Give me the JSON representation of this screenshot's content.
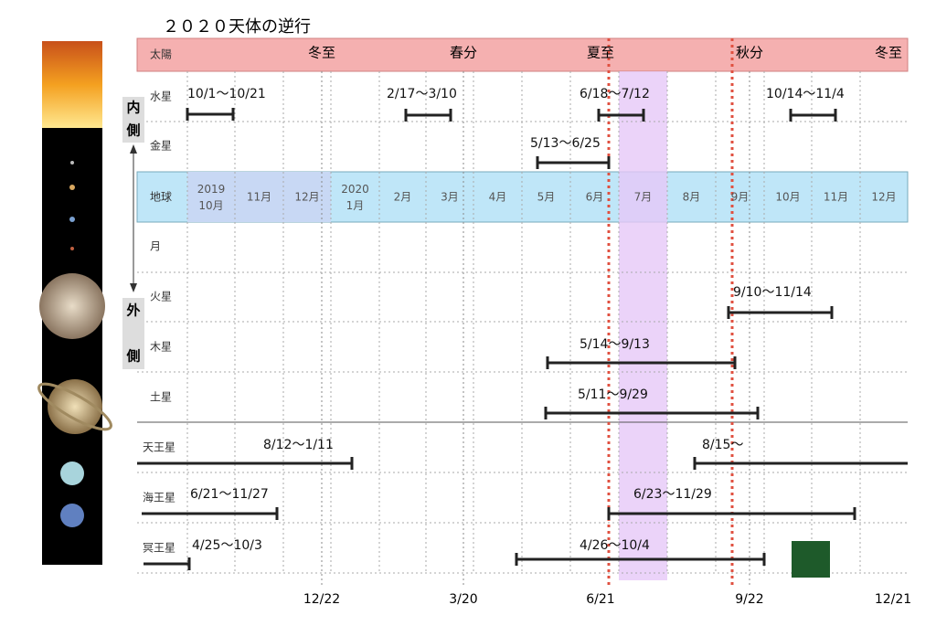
{
  "title": "２０２０天体の逆行",
  "side": {
    "inner": [
      "内",
      "側"
    ],
    "outer": [
      "外",
      "側"
    ]
  },
  "sun": {
    "name": "太陽",
    "seasons": [
      "冬至",
      "春分",
      "夏至",
      "秋分",
      "冬至"
    ]
  },
  "earth": {
    "name": "地球",
    "months": [
      "2019\n10月",
      "11月",
      "12月",
      "2020\n1月",
      "2月",
      "3月",
      "4月",
      "5月",
      "6月",
      "7月",
      "8月",
      "9月",
      "10月",
      "11月",
      "12月"
    ]
  },
  "rows": [
    "水星",
    "金星",
    "月",
    "火星",
    "木星",
    "土星",
    "天王星",
    "海王星",
    "冥王星"
  ],
  "periods": {
    "mercury": [
      "10/1〜10/21",
      "2/17〜3/10",
      "6/18〜7/12",
      "10/14〜11/4"
    ],
    "venus": [
      "5/13〜6/25"
    ],
    "mars": [
      "9/10〜11/14"
    ],
    "jupiter": [
      "5/14〜9/13"
    ],
    "saturn": [
      "5/11〜9/29"
    ],
    "uranus": [
      "8/12〜1/11",
      "8/15〜"
    ],
    "neptune": [
      "6/21〜11/27",
      "6/23〜11/29"
    ],
    "pluto": [
      "4/25〜10/3",
      "4/26〜10/4"
    ]
  },
  "bottom_dates": [
    "12/22",
    "3/20",
    "6/21",
    "9/22",
    "12/21"
  ]
}
